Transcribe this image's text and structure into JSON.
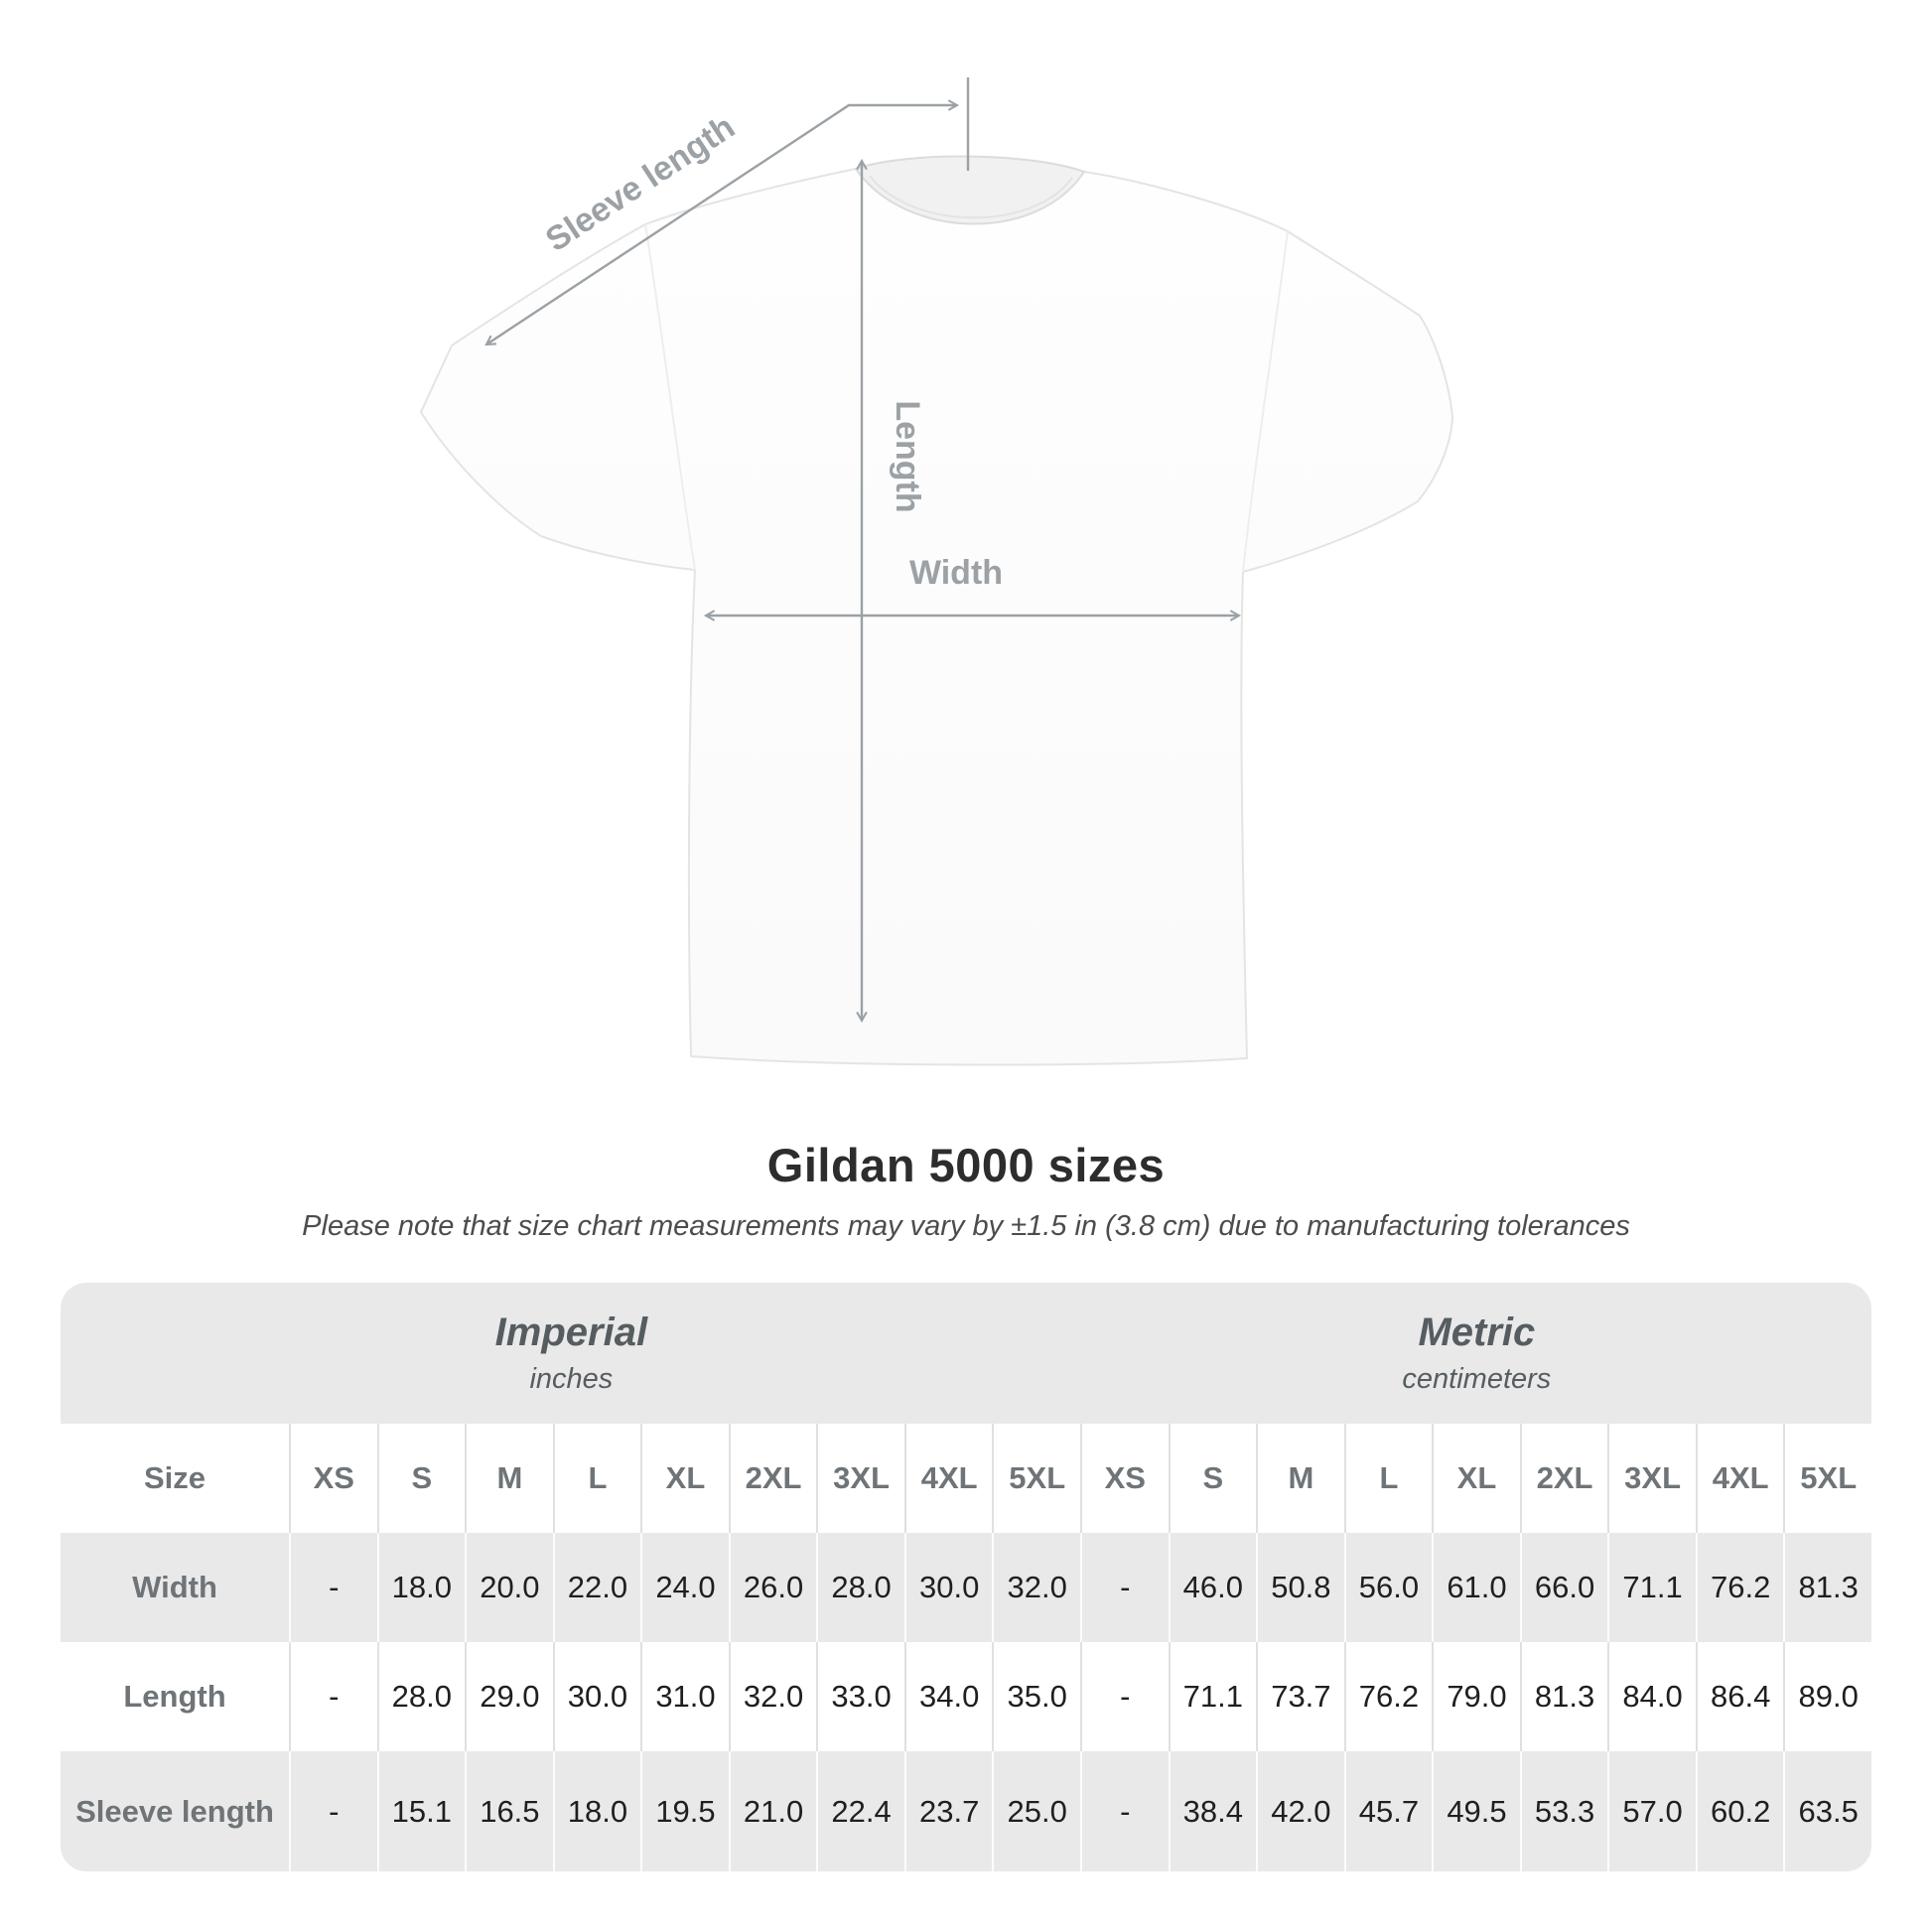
{
  "figure": {
    "labels": {
      "sleeve_length": "Sleeve length",
      "length": "Length",
      "width": "Width"
    },
    "annotation_color": "#9ba1a5"
  },
  "heading": {
    "title": "Gildan 5000 sizes",
    "subtitle": "Please note that size chart measurements may vary by ±1.5 in (3.8 cm) due to manufacturing tolerances"
  },
  "size_table": {
    "unit_groups": [
      {
        "name": "Imperial",
        "unit": "inches"
      },
      {
        "name": "Metric",
        "unit": "centimeters"
      }
    ],
    "header": {
      "label": "Size",
      "imperial_sizes": [
        "XS",
        "S",
        "M",
        "L",
        "XL",
        "2XL",
        "3XL",
        "4XL",
        "5XL"
      ],
      "metric_sizes": [
        "XS",
        "S",
        "M",
        "L",
        "XL",
        "2XL",
        "3XL",
        "4XL",
        "5XL"
      ]
    },
    "rows": [
      {
        "label": "Width",
        "imperial": [
          "-",
          "18.0",
          "20.0",
          "22.0",
          "24.0",
          "26.0",
          "28.0",
          "30.0",
          "32.0"
        ],
        "metric": [
          "-",
          "46.0",
          "50.8",
          "56.0",
          "61.0",
          "66.0",
          "71.1",
          "76.2",
          "81.3"
        ]
      },
      {
        "label": "Length",
        "imperial": [
          "-",
          "28.0",
          "29.0",
          "30.0",
          "31.0",
          "32.0",
          "33.0",
          "34.0",
          "35.0"
        ],
        "metric": [
          "-",
          "71.1",
          "73.7",
          "76.2",
          "79.0",
          "81.3",
          "84.0",
          "86.4",
          "89.0"
        ]
      },
      {
        "label": "Sleeve length",
        "imperial": [
          "-",
          "15.1",
          "16.5",
          "18.0",
          "19.5",
          "21.0",
          "22.4",
          "23.7",
          "25.0"
        ],
        "metric": [
          "-",
          "38.4",
          "42.0",
          "45.7",
          "49.5",
          "53.3",
          "57.0",
          "60.2",
          "63.5"
        ]
      }
    ]
  },
  "chart_data": {
    "type": "table",
    "title": "Gildan 5000 sizes",
    "note": "Please note that size chart measurements may vary by ±1.5 in (3.8 cm) due to manufacturing tolerances",
    "columns": [
      "Size",
      "XS",
      "S",
      "M",
      "L",
      "XL",
      "2XL",
      "3XL",
      "4XL",
      "5XL"
    ],
    "imperial_inches": {
      "Width": [
        null,
        18.0,
        20.0,
        22.0,
        24.0,
        26.0,
        28.0,
        30.0,
        32.0
      ],
      "Length": [
        null,
        28.0,
        29.0,
        30.0,
        31.0,
        32.0,
        33.0,
        34.0,
        35.0
      ],
      "Sleeve length": [
        null,
        15.1,
        16.5,
        18.0,
        19.5,
        21.0,
        22.4,
        23.7,
        25.0
      ]
    },
    "metric_centimeters": {
      "Width": [
        null,
        46.0,
        50.8,
        56.0,
        61.0,
        66.0,
        71.1,
        76.2,
        81.3
      ],
      "Length": [
        null,
        71.1,
        73.7,
        76.2,
        79.0,
        81.3,
        84.0,
        86.4,
        89.0
      ],
      "Sleeve length": [
        null,
        38.4,
        42.0,
        45.7,
        49.5,
        53.3,
        57.0,
        60.2,
        63.5
      ]
    }
  },
  "colors": {
    "table_gray": "#e9e9e9",
    "header_text": "#6e7477",
    "unit_header_text": "#565d61",
    "value_text": "#1f1f1f",
    "title_text": "#2d2d2d",
    "subtitle_text": "#4c4c4c",
    "annotation": "#9ba1a5"
  }
}
